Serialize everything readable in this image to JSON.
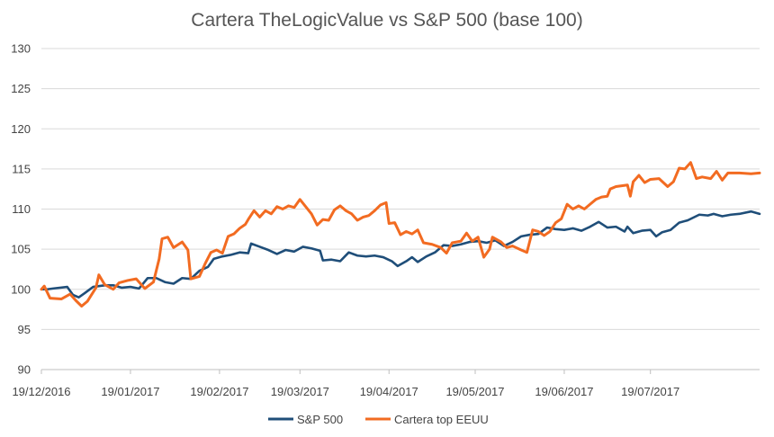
{
  "chart_data": {
    "type": "line",
    "title": "Cartera TheLogicValue vs S&P 500 (base 100)",
    "xlabel": "",
    "ylabel": "",
    "ylim": [
      90,
      130
    ],
    "y_ticks": [
      90,
      95,
      100,
      105,
      110,
      115,
      120,
      125,
      130
    ],
    "x_range": [
      "2016-12-19",
      "2017-08-26"
    ],
    "x_ticks": [
      "2016-12-19",
      "2017-01-19",
      "2017-02-19",
      "2017-03-19",
      "2017-04-19",
      "2017-05-19",
      "2017-06-19",
      "2017-07-19"
    ],
    "x_tick_labels": [
      "19/12/2016",
      "19/01/2017",
      "19/02/2017",
      "19/03/2017",
      "19/04/2017",
      "19/05/2017",
      "19/06/2017",
      "19/07/2017"
    ],
    "grid": "horizontal",
    "legend_position": "bottom",
    "series": [
      {
        "name": "S&P 500",
        "color": "#1f4e79",
        "points": [
          [
            "2016-12-19",
            100.0
          ],
          [
            "2016-12-21",
            100.0
          ],
          [
            "2016-12-23",
            100.1
          ],
          [
            "2016-12-28",
            100.3
          ],
          [
            "2016-12-30",
            99.3
          ],
          [
            "2017-01-01",
            99.0
          ],
          [
            "2017-01-03",
            99.5
          ],
          [
            "2017-01-06",
            100.3
          ],
          [
            "2017-01-10",
            100.5
          ],
          [
            "2017-01-13",
            100.5
          ],
          [
            "2017-01-16",
            100.2
          ],
          [
            "2017-01-19",
            100.3
          ],
          [
            "2017-01-22",
            100.1
          ],
          [
            "2017-01-25",
            101.4
          ],
          [
            "2017-01-28",
            101.4
          ],
          [
            "2017-01-31",
            100.9
          ],
          [
            "2017-02-03",
            100.7
          ],
          [
            "2017-02-06",
            101.4
          ],
          [
            "2017-02-09",
            101.3
          ],
          [
            "2017-02-12",
            102.3
          ],
          [
            "2017-02-15",
            102.8
          ],
          [
            "2017-02-17",
            103.8
          ],
          [
            "2017-02-20",
            104.1
          ],
          [
            "2017-02-23",
            104.3
          ],
          [
            "2017-02-26",
            104.6
          ],
          [
            "2017-03-01",
            104.5
          ],
          [
            "2017-03-02",
            105.7
          ],
          [
            "2017-03-05",
            105.3
          ],
          [
            "2017-03-08",
            104.9
          ],
          [
            "2017-03-11",
            104.4
          ],
          [
            "2017-03-14",
            104.9
          ],
          [
            "2017-03-17",
            104.7
          ],
          [
            "2017-03-20",
            105.3
          ],
          [
            "2017-03-23",
            105.1
          ],
          [
            "2017-03-26",
            104.8
          ],
          [
            "2017-03-27",
            103.6
          ],
          [
            "2017-03-30",
            103.7
          ],
          [
            "2017-04-02",
            103.5
          ],
          [
            "2017-04-05",
            104.6
          ],
          [
            "2017-04-08",
            104.2
          ],
          [
            "2017-04-11",
            104.1
          ],
          [
            "2017-04-14",
            104.2
          ],
          [
            "2017-04-17",
            104.0
          ],
          [
            "2017-04-20",
            103.5
          ],
          [
            "2017-04-22",
            102.9
          ],
          [
            "2017-04-25",
            103.5
          ],
          [
            "2017-04-27",
            104.0
          ],
          [
            "2017-04-29",
            103.4
          ],
          [
            "2017-05-02",
            104.1
          ],
          [
            "2017-05-05",
            104.6
          ],
          [
            "2017-05-08",
            105.5
          ],
          [
            "2017-05-11",
            105.4
          ],
          [
            "2017-05-14",
            105.6
          ],
          [
            "2017-05-17",
            105.9
          ],
          [
            "2017-05-20",
            106.0
          ],
          [
            "2017-05-23",
            105.8
          ],
          [
            "2017-05-26",
            106.1
          ],
          [
            "2017-05-29",
            105.4
          ],
          [
            "2017-06-01",
            105.9
          ],
          [
            "2017-06-04",
            106.6
          ],
          [
            "2017-06-07",
            106.8
          ],
          [
            "2017-06-10",
            106.9
          ],
          [
            "2017-06-13",
            107.7
          ],
          [
            "2017-06-16",
            107.5
          ],
          [
            "2017-06-19",
            107.4
          ],
          [
            "2017-06-22",
            107.6
          ],
          [
            "2017-06-25",
            107.3
          ],
          [
            "2017-06-28",
            107.8
          ],
          [
            "2017-07-01",
            108.4
          ],
          [
            "2017-07-04",
            107.7
          ],
          [
            "2017-07-07",
            107.8
          ],
          [
            "2017-07-10",
            107.2
          ],
          [
            "2017-07-11",
            107.8
          ],
          [
            "2017-07-13",
            107.0
          ],
          [
            "2017-07-16",
            107.3
          ],
          [
            "2017-07-19",
            107.4
          ],
          [
            "2017-07-21",
            106.6
          ],
          [
            "2017-07-23",
            107.1
          ],
          [
            "2017-07-26",
            107.4
          ],
          [
            "2017-07-29",
            108.3
          ],
          [
            "2017-08-01",
            108.6
          ],
          [
            "2017-08-05",
            109.3
          ],
          [
            "2017-08-08",
            109.2
          ],
          [
            "2017-08-10",
            109.4
          ],
          [
            "2017-08-13",
            109.1
          ],
          [
            "2017-08-16",
            109.3
          ],
          [
            "2017-08-19",
            109.4
          ],
          [
            "2017-08-23",
            109.7
          ],
          [
            "2017-08-26",
            109.4
          ]
        ]
      },
      {
        "name": "Cartera top EEUU",
        "color": "#f26b21",
        "points": [
          [
            "2016-12-19",
            100.0
          ],
          [
            "2016-12-20",
            100.4
          ],
          [
            "2016-12-22",
            98.9
          ],
          [
            "2016-12-26",
            98.8
          ],
          [
            "2016-12-29",
            99.4
          ],
          [
            "2016-12-31",
            98.6
          ],
          [
            "2017-01-02",
            97.9
          ],
          [
            "2017-01-04",
            98.5
          ],
          [
            "2017-01-07",
            100.2
          ],
          [
            "2017-01-08",
            101.8
          ],
          [
            "2017-01-10",
            100.6
          ],
          [
            "2017-01-13",
            100.0
          ],
          [
            "2017-01-15",
            100.8
          ],
          [
            "2017-01-18",
            101.1
          ],
          [
            "2017-01-21",
            101.3
          ],
          [
            "2017-01-24",
            100.1
          ],
          [
            "2017-01-27",
            100.9
          ],
          [
            "2017-01-29",
            103.8
          ],
          [
            "2017-01-30",
            106.3
          ],
          [
            "2017-02-01",
            106.5
          ],
          [
            "2017-02-03",
            105.2
          ],
          [
            "2017-02-06",
            105.9
          ],
          [
            "2017-02-08",
            104.9
          ],
          [
            "2017-02-09",
            101.3
          ],
          [
            "2017-02-12",
            101.6
          ],
          [
            "2017-02-14",
            103.2
          ],
          [
            "2017-02-16",
            104.6
          ],
          [
            "2017-02-18",
            104.9
          ],
          [
            "2017-02-20",
            104.5
          ],
          [
            "2017-02-22",
            106.6
          ],
          [
            "2017-02-24",
            106.9
          ],
          [
            "2017-02-26",
            107.6
          ],
          [
            "2017-02-28",
            108.1
          ],
          [
            "2017-03-01",
            108.7
          ],
          [
            "2017-03-03",
            109.8
          ],
          [
            "2017-03-05",
            109.0
          ],
          [
            "2017-03-07",
            109.8
          ],
          [
            "2017-03-09",
            109.4
          ],
          [
            "2017-03-11",
            110.3
          ],
          [
            "2017-03-13",
            110.0
          ],
          [
            "2017-03-15",
            110.4
          ],
          [
            "2017-03-17",
            110.2
          ],
          [
            "2017-03-19",
            111.2
          ],
          [
            "2017-03-21",
            110.3
          ],
          [
            "2017-03-23",
            109.4
          ],
          [
            "2017-03-25",
            108.0
          ],
          [
            "2017-03-27",
            108.7
          ],
          [
            "2017-03-29",
            108.6
          ],
          [
            "2017-03-31",
            109.9
          ],
          [
            "2017-04-02",
            110.4
          ],
          [
            "2017-04-04",
            109.8
          ],
          [
            "2017-04-06",
            109.4
          ],
          [
            "2017-04-08",
            108.6
          ],
          [
            "2017-04-10",
            109.0
          ],
          [
            "2017-04-12",
            109.2
          ],
          [
            "2017-04-14",
            109.8
          ],
          [
            "2017-04-16",
            110.5
          ],
          [
            "2017-04-18",
            110.8
          ],
          [
            "2017-04-19",
            108.2
          ],
          [
            "2017-04-21",
            108.3
          ],
          [
            "2017-04-23",
            106.8
          ],
          [
            "2017-04-25",
            107.2
          ],
          [
            "2017-04-27",
            106.9
          ],
          [
            "2017-04-29",
            107.4
          ],
          [
            "2017-05-01",
            105.8
          ],
          [
            "2017-05-04",
            105.6
          ],
          [
            "2017-05-07",
            105.2
          ],
          [
            "2017-05-09",
            104.5
          ],
          [
            "2017-05-11",
            105.8
          ],
          [
            "2017-05-14",
            106.0
          ],
          [
            "2017-05-16",
            107.0
          ],
          [
            "2017-05-18",
            106.0
          ],
          [
            "2017-05-20",
            106.5
          ],
          [
            "2017-05-22",
            104.0
          ],
          [
            "2017-05-24",
            105.0
          ],
          [
            "2017-05-25",
            106.5
          ],
          [
            "2017-05-28",
            105.9
          ],
          [
            "2017-05-30",
            105.2
          ],
          [
            "2017-06-01",
            105.4
          ],
          [
            "2017-06-04",
            104.9
          ],
          [
            "2017-06-06",
            104.6
          ],
          [
            "2017-06-08",
            107.4
          ],
          [
            "2017-06-10",
            107.2
          ],
          [
            "2017-06-12",
            106.7
          ],
          [
            "2017-06-14",
            107.2
          ],
          [
            "2017-06-16",
            108.3
          ],
          [
            "2017-06-18",
            108.8
          ],
          [
            "2017-06-20",
            110.6
          ],
          [
            "2017-06-22",
            110.0
          ],
          [
            "2017-06-24",
            110.4
          ],
          [
            "2017-06-26",
            110.0
          ],
          [
            "2017-06-28",
            110.6
          ],
          [
            "2017-06-30",
            111.2
          ],
          [
            "2017-07-02",
            111.5
          ],
          [
            "2017-07-04",
            111.6
          ],
          [
            "2017-07-05",
            112.5
          ],
          [
            "2017-07-07",
            112.8
          ],
          [
            "2017-07-09",
            112.9
          ],
          [
            "2017-07-11",
            113.0
          ],
          [
            "2017-07-12",
            111.6
          ],
          [
            "2017-07-13",
            113.4
          ],
          [
            "2017-07-15",
            114.2
          ],
          [
            "2017-07-17",
            113.3
          ],
          [
            "2017-07-19",
            113.7
          ],
          [
            "2017-07-22",
            113.8
          ],
          [
            "2017-07-25",
            112.8
          ],
          [
            "2017-07-27",
            113.4
          ],
          [
            "2017-07-29",
            115.1
          ],
          [
            "2017-07-31",
            115.0
          ],
          [
            "2017-08-02",
            115.8
          ],
          [
            "2017-08-04",
            113.8
          ],
          [
            "2017-08-06",
            114.0
          ],
          [
            "2017-08-09",
            113.8
          ],
          [
            "2017-08-11",
            114.7
          ],
          [
            "2017-08-13",
            113.6
          ],
          [
            "2017-08-15",
            114.5
          ],
          [
            "2017-08-19",
            114.5
          ],
          [
            "2017-08-23",
            114.4
          ],
          [
            "2017-08-26",
            114.5
          ]
        ]
      }
    ]
  }
}
